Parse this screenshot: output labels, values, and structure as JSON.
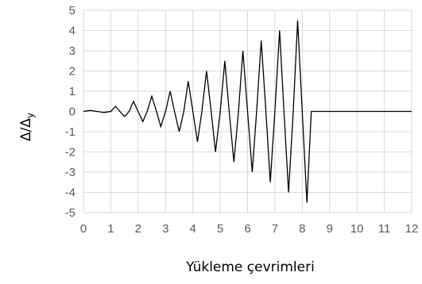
{
  "chart_data": {
    "type": "line",
    "title": "",
    "xlabel": "Yükleme çevrimleri",
    "ylabel_main": "Δ/Δ",
    "ylabel_sub": "y",
    "xlim": [
      0,
      12
    ],
    "ylim": [
      -5,
      5
    ],
    "xticks": [
      0,
      1,
      2,
      3,
      4,
      5,
      6,
      7,
      8,
      9,
      10,
      11,
      12
    ],
    "yticks": [
      5,
      4,
      3,
      2,
      1,
      0,
      -1,
      -2,
      -3,
      -4,
      -5
    ],
    "grid": true,
    "legend": "none",
    "line_color": "#000000",
    "grid_color": "#d9d9d9",
    "series": [
      {
        "x": [
          0,
          0.25,
          0.5,
          0.75,
          1,
          1.17,
          1.33,
          1.5,
          1.67,
          1.83,
          2,
          2.17,
          2.33,
          2.5,
          2.67,
          2.83,
          3,
          3.17,
          3.33,
          3.5,
          3.67,
          3.83,
          4,
          4.17,
          4.33,
          4.5,
          4.67,
          4.83,
          5,
          5.17,
          5.33,
          5.5,
          5.67,
          5.83,
          6,
          6.17,
          6.33,
          6.5,
          6.67,
          6.83,
          7,
          7.17,
          7.33,
          7.5,
          7.67,
          7.83,
          8,
          8.17,
          8.33,
          8.5,
          8.67,
          8.83,
          9,
          9.17,
          9.33,
          9.5,
          9.67,
          9.83,
          10,
          10.17,
          10.33,
          10.5,
          10.67,
          10.83,
          11,
          11.17,
          11.33,
          11.5,
          11.67,
          11.83,
          12
        ],
        "y": [
          0,
          0.05,
          0,
          -0.05,
          0,
          0.25,
          0,
          -0.25,
          0,
          0.5,
          0,
          -0.5,
          0,
          0.75,
          0,
          -0.75,
          0,
          1.0,
          0,
          -1.0,
          0,
          1.5,
          0,
          -1.5,
          0,
          2.0,
          0,
          -2.0,
          0,
          2.5,
          0,
          -2.5,
          0,
          3.0,
          0,
          -3.0,
          0,
          3.5,
          0,
          -3.5,
          0,
          4.0,
          0,
          -4.0,
          0,
          4.5,
          0,
          -4.5,
          0,
          0,
          0,
          0,
          0,
          0,
          0,
          0,
          0,
          0,
          0,
          0,
          0,
          0,
          0,
          0,
          0,
          0,
          0,
          0,
          0,
          0,
          0
        ]
      }
    ]
  }
}
